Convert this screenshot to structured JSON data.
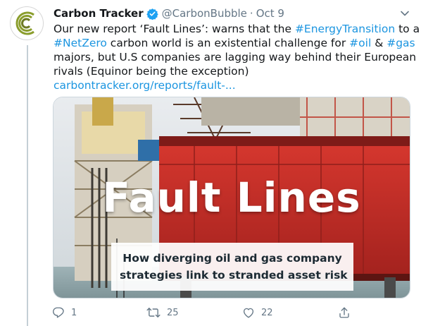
{
  "tweet": {
    "author": {
      "display_name": "Carbon Tracker",
      "handle": "@CarbonBubble",
      "verified": true,
      "avatar_icon": "carbon-tracker-logo-icon"
    },
    "separator": "·",
    "date": "Oct 9",
    "text_lines": [
      [
        {
          "type": "text",
          "value": "Our new report ‘Fault Lines’: warns that the "
        },
        {
          "type": "hashtag",
          "value": "#EnergyTransition"
        },
        {
          "type": "text",
          "value": " to a"
        }
      ],
      [
        {
          "type": "hashtag",
          "value": "#NetZero"
        },
        {
          "type": "text",
          "value": " carbon world is an existential challenge for "
        },
        {
          "type": "hashtag",
          "value": "#oil"
        },
        {
          "type": "text",
          "value": " & "
        },
        {
          "type": "hashtag",
          "value": "#gas"
        }
      ],
      [
        {
          "type": "text",
          "value": "majors, but U.S companies are lagging way behind their European"
        }
      ],
      [
        {
          "type": "text",
          "value": "rivals (Equinor being the exception)"
        }
      ],
      [
        {
          "type": "link",
          "value": "carbontracker.org/reports/fault-..."
        }
      ]
    ],
    "media": {
      "headline": "Fault Lines",
      "subtitle_lines": [
        "How diverging oil and gas company",
        "strategies link to stranded asset risk"
      ]
    },
    "actions": {
      "reply": {
        "icon": "reply-icon",
        "count": "1"
      },
      "retweet": {
        "icon": "retweet-icon",
        "count": "25"
      },
      "like": {
        "icon": "heart-icon",
        "count": "22"
      },
      "share": {
        "icon": "share-icon"
      }
    }
  },
  "colors": {
    "link": "#1b95e0",
    "secondary_text": "#657786",
    "verified": "#1da1f2",
    "rig_red": "#c8302b"
  }
}
